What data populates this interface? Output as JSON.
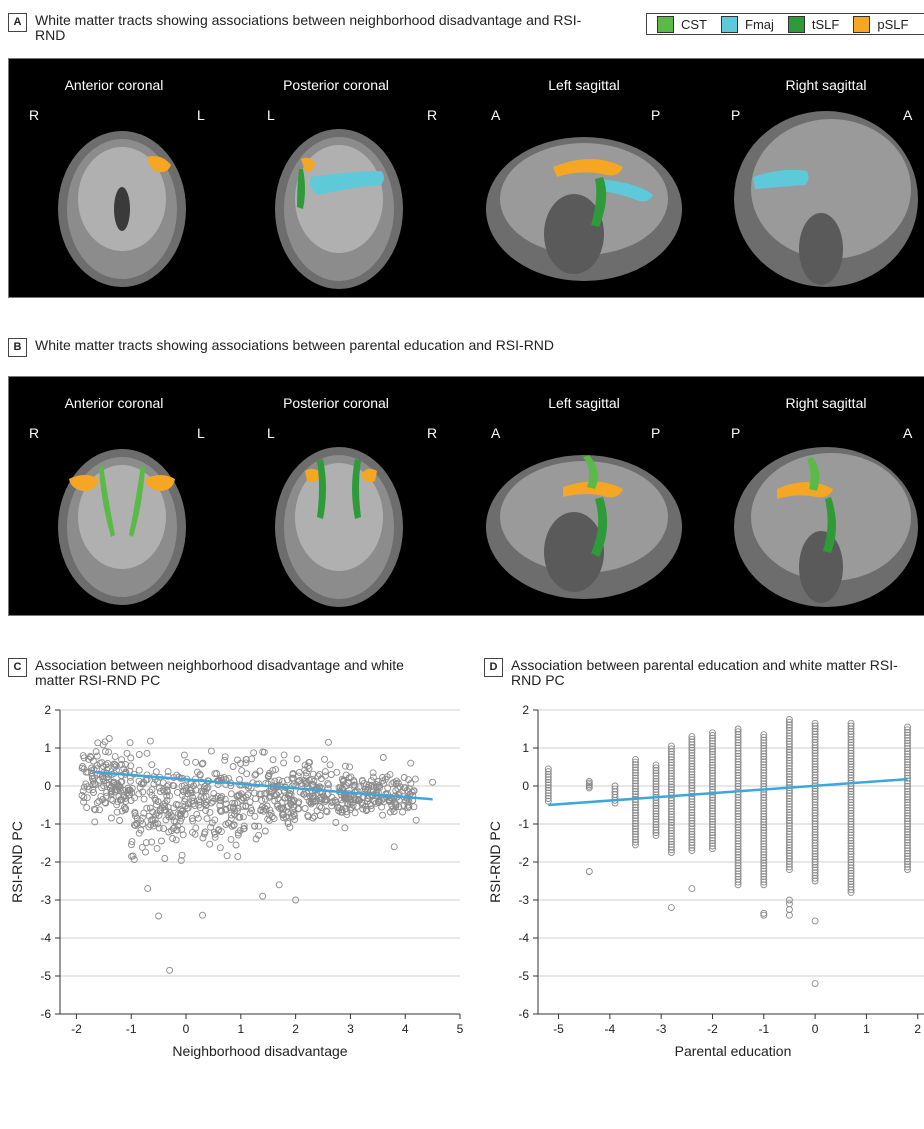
{
  "panel_a": {
    "letter": "A",
    "title": "White matter tracts showing associations between neighborhood disadvantage and RSI-RND",
    "views": [
      {
        "title": "Anterior coronal",
        "left": "R",
        "right": "L"
      },
      {
        "title": "Posterior coronal",
        "left": "L",
        "right": "R"
      },
      {
        "title": "Left sagittal",
        "left": "A",
        "right": "P"
      },
      {
        "title": "Right sagittal",
        "left": "P",
        "right": "A"
      }
    ]
  },
  "panel_b": {
    "letter": "B",
    "title": "White matter tracts showing associations between parental education and RSI-RND",
    "views": [
      {
        "title": "Anterior coronal",
        "left": "R",
        "right": "L"
      },
      {
        "title": "Posterior coronal",
        "left": "L",
        "right": "R"
      },
      {
        "title": "Left sagittal",
        "left": "A",
        "right": "P"
      },
      {
        "title": "Right sagittal",
        "left": "P",
        "right": "A"
      }
    ]
  },
  "legend": [
    {
      "label": "CST",
      "color": "#5bb947"
    },
    {
      "label": "Fmaj",
      "color": "#5ec9d8"
    },
    {
      "label": "tSLF",
      "color": "#2e9a3a"
    },
    {
      "label": "pSLF",
      "color": "#f5a623"
    }
  ],
  "colors": {
    "points": "#8a8a8a",
    "fit_line": "#3ba7dc",
    "grid": "#cfcfcf"
  },
  "panel_c": {
    "letter": "C",
    "title": "Association between neighborhood disadvantage and white matter RSI-RND PC"
  },
  "panel_d": {
    "letter": "D",
    "title": "Association between parental education and white matter RSI-RND PC"
  },
  "chart_data": [
    {
      "type": "scatter",
      "xlabel": "Neighborhood disadvantage",
      "ylabel": "RSI-RND PC",
      "xlim": [
        -2.3,
        5
      ],
      "ylim": [
        -6,
        2
      ],
      "xticks": [
        -2,
        -1,
        0,
        1,
        2,
        3,
        4,
        5
      ],
      "yticks": [
        2,
        1,
        0,
        -1,
        -2,
        -3,
        -4,
        -5,
        -6
      ],
      "grid": "horizontal",
      "fit_line": {
        "x": [
          -1.7,
          4.5
        ],
        "y": [
          0.37,
          -0.35
        ]
      },
      "outliers": [
        [
          -0.3,
          -4.85
        ],
        [
          -0.5,
          -3.42
        ],
        [
          0.3,
          -3.4
        ],
        [
          2.0,
          -3.0
        ],
        [
          1.4,
          -2.9
        ],
        [
          1.7,
          -2.6
        ],
        [
          -0.7,
          -2.7
        ],
        [
          3.8,
          -1.6
        ],
        [
          4.1,
          0.6
        ],
        [
          3.6,
          0.75
        ],
        [
          2.6,
          1.15
        ],
        [
          2.9,
          -1.1
        ],
        [
          4.2,
          -0.9
        ],
        [
          4.5,
          0.1
        ],
        [
          -1.4,
          1.25
        ]
      ],
      "cloud": [
        {
          "x": [
            -1.9,
            -1.0
          ],
          "y": [
            -1.4,
            1.6
          ]
        },
        {
          "x": [
            -1.0,
            0.0
          ],
          "y": [
            -2.6,
            1.6
          ]
        },
        {
          "x": [
            0.0,
            1.0
          ],
          "y": [
            -2.3,
            1.55
          ]
        },
        {
          "x": [
            1.0,
            2.0
          ],
          "y": [
            -2.0,
            1.3
          ]
        },
        {
          "x": [
            2.0,
            3.0
          ],
          "y": [
            -1.3,
            1.0
          ]
        },
        {
          "x": [
            3.0,
            4.2
          ],
          "y": [
            -1.0,
            0.6
          ]
        }
      ]
    },
    {
      "type": "scatter",
      "xlabel": "Parental education",
      "ylabel": "RSI-RND PC",
      "xlim": [
        -5.4,
        2.2
      ],
      "ylim": [
        -6,
        2
      ],
      "xticks": [
        -5,
        -4,
        -3,
        -2,
        -1,
        0,
        1,
        2
      ],
      "yticks": [
        2,
        1,
        0,
        -1,
        -2,
        -3,
        -4,
        -5,
        -6
      ],
      "grid": "horizontal",
      "fit_line": {
        "x": [
          -5.2,
          1.8
        ],
        "y": [
          -0.5,
          0.18
        ]
      },
      "columns": [
        {
          "x": -5.2,
          "lo": -0.4,
          "hi": 0.45,
          "extra": []
        },
        {
          "x": -4.4,
          "lo": -0.05,
          "hi": 0.12,
          "extra": [
            -2.25
          ]
        },
        {
          "x": -3.9,
          "lo": -0.45,
          "hi": 0.0,
          "extra": []
        },
        {
          "x": -3.5,
          "lo": -1.55,
          "hi": 0.7,
          "extra": []
        },
        {
          "x": -3.1,
          "lo": -1.3,
          "hi": 0.55,
          "extra": []
        },
        {
          "x": -2.8,
          "lo": -1.75,
          "hi": 1.05,
          "extra": [
            -3.2
          ]
        },
        {
          "x": -2.4,
          "lo": -1.7,
          "hi": 1.3,
          "extra": [
            -2.7
          ]
        },
        {
          "x": -2.0,
          "lo": -1.65,
          "hi": 1.4,
          "extra": []
        },
        {
          "x": -1.5,
          "lo": -2.6,
          "hi": 1.5,
          "extra": []
        },
        {
          "x": -1.0,
          "lo": -2.6,
          "hi": 1.35,
          "extra": [
            -3.4,
            -3.35
          ]
        },
        {
          "x": -0.5,
          "lo": -2.2,
          "hi": 1.75,
          "extra": [
            -3.0,
            -3.1,
            -3.25,
            -3.4
          ]
        },
        {
          "x": 0.0,
          "lo": -2.5,
          "hi": 1.65,
          "extra": [
            -3.55,
            -5.2
          ]
        },
        {
          "x": 0.7,
          "lo": -2.8,
          "hi": 1.65,
          "extra": []
        },
        {
          "x": 1.8,
          "lo": -2.2,
          "hi": 1.55,
          "extra": []
        }
      ]
    }
  ]
}
